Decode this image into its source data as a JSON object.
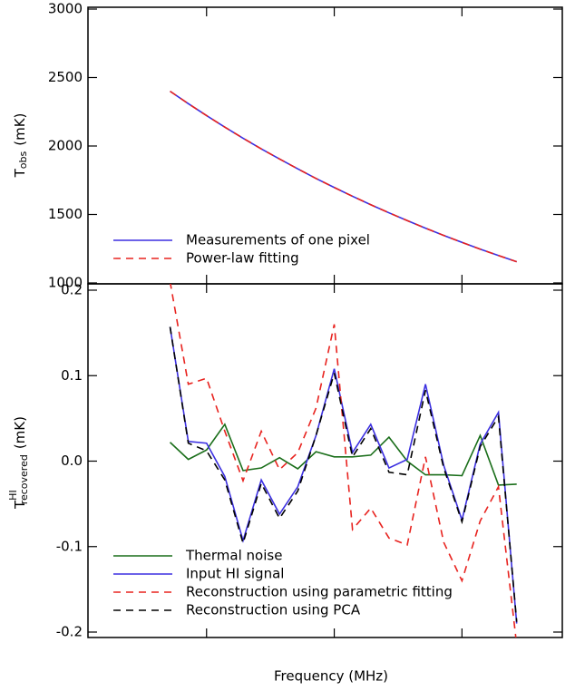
{
  "chart_data": [
    {
      "type": "line",
      "y_label": {
        "base": "T",
        "sub": "obs",
        "unit": "(mK)"
      },
      "x": [
        1,
        2,
        3,
        4,
        5,
        6,
        7,
        8,
        9,
        10,
        11,
        12,
        13,
        14,
        15,
        16,
        17,
        18,
        19,
        20
      ],
      "xlim": [
        -3.5,
        22.5
      ],
      "xticks": [
        3,
        10,
        17
      ],
      "ylim": [
        1000,
        3000
      ],
      "yticks": [
        1000,
        1500,
        2000,
        2500,
        3000
      ],
      "legend": "lower left",
      "series": [
        {
          "name": "Measurements of one pixel",
          "color": "#3b2fe0",
          "dash": "solid",
          "values": [
            2400,
            2309,
            2222,
            2138,
            2057,
            1979,
            1905,
            1833,
            1763,
            1697,
            1633,
            1571,
            1512,
            1455,
            1400,
            1347,
            1296,
            1247,
            1200,
            1155
          ]
        },
        {
          "name": "Power-law fitting",
          "color": "#e8231f",
          "dash": "dashed",
          "values": [
            2400,
            2309,
            2222,
            2138,
            2057,
            1979,
            1905,
            1833,
            1763,
            1697,
            1633,
            1571,
            1512,
            1455,
            1400,
            1347,
            1296,
            1247,
            1200,
            1155
          ]
        }
      ]
    },
    {
      "type": "line",
      "y_label": {
        "base": "T",
        "sup": "HI",
        "sub": "recovered",
        "unit": "(mK)"
      },
      "x_label": "Frequency (MHz)",
      "x": [
        1,
        2,
        3,
        4,
        5,
        6,
        7,
        8,
        9,
        10,
        11,
        12,
        13,
        14,
        15,
        16,
        17,
        18,
        19,
        20
      ],
      "xlim": [
        -3.5,
        22.5
      ],
      "xticks": [
        3,
        10,
        17
      ],
      "ylim": [
        -0.2,
        0.2
      ],
      "yticks": [
        -0.2,
        -0.1,
        {
          "value": 0,
          "label": "0.0"
        },
        0.1,
        0.2
      ],
      "legend": "lower left",
      "series": [
        {
          "name": "Thermal noise",
          "color": "#1a6e1a",
          "dash": "solid",
          "values": [
            0.022,
            0.002,
            0.013,
            0.043,
            -0.011,
            -0.008,
            0.004,
            -0.009,
            0.011,
            0.005,
            0.005,
            0.007,
            0.028,
            0.0,
            -0.016,
            -0.016,
            -0.017,
            0.03,
            -0.028,
            -0.027
          ]
        },
        {
          "name": "Input HI signal",
          "color": "#3b2fe0",
          "dash": "solid",
          "values": [
            0.157,
            0.023,
            0.021,
            -0.018,
            -0.093,
            -0.022,
            -0.062,
            -0.03,
            0.03,
            0.108,
            0.01,
            0.043,
            -0.008,
            0.002,
            0.09,
            -0.005,
            -0.069,
            0.02,
            0.057,
            -0.19
          ]
        },
        {
          "name": "Reconstruction using parametric fitting",
          "color": "#e8231f",
          "dash": "dashed",
          "values": [
            0.21,
            0.09,
            0.097,
            0.035,
            -0.023,
            0.035,
            -0.01,
            0.01,
            0.062,
            0.16,
            -0.08,
            -0.055,
            -0.09,
            -0.098,
            0.005,
            -0.095,
            -0.14,
            -0.07,
            -0.03,
            -0.215
          ]
        },
        {
          "name": "Reconstruction using PCA",
          "color": "#000000",
          "dash": "dashed",
          "values": [
            0.157,
            0.021,
            0.012,
            -0.022,
            -0.096,
            -0.026,
            -0.067,
            -0.035,
            0.03,
            0.103,
            0.005,
            0.038,
            -0.013,
            -0.016,
            0.083,
            -0.008,
            -0.071,
            0.017,
            0.052,
            -0.188
          ]
        }
      ]
    }
  ]
}
